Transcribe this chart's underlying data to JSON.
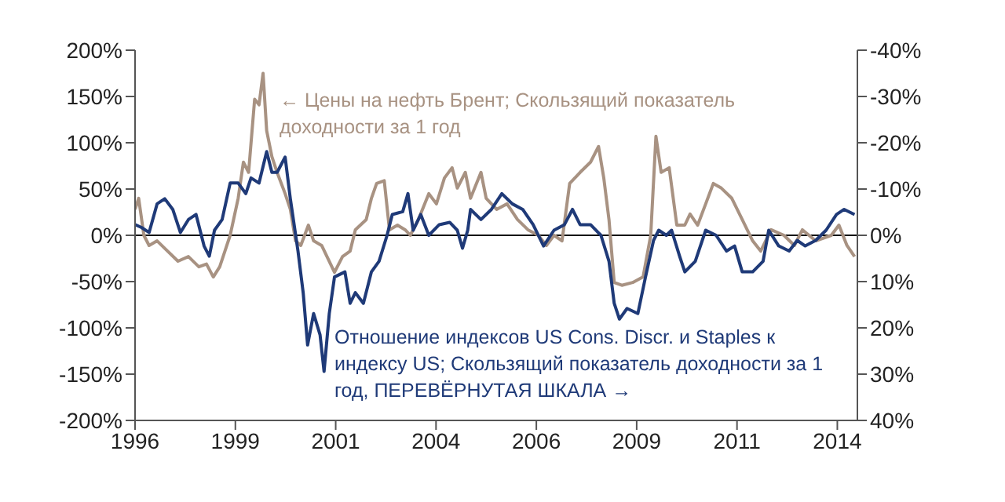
{
  "chart_data": {
    "type": "line",
    "xlim": [
      1996,
      2014
    ],
    "xticks": [
      {
        "value": 1996,
        "label": "1996"
      },
      {
        "value": 1998.5,
        "label": "1999"
      },
      {
        "value": 2001,
        "label": "2001"
      },
      {
        "value": 2003.5,
        "label": "2004"
      },
      {
        "value": 2006,
        "label": "2006"
      },
      {
        "value": 2008.5,
        "label": "2009"
      },
      {
        "value": 2011,
        "label": "2011"
      },
      {
        "value": 2013.5,
        "label": "2014"
      }
    ],
    "ylim": [
      -200,
      200
    ],
    "yticks": [
      {
        "value": -200,
        "label": "-200%"
      },
      {
        "value": -150,
        "label": "-150%"
      },
      {
        "value": -100,
        "label": "-100%"
      },
      {
        "value": -50,
        "label": "-50%"
      },
      {
        "value": 0,
        "label": "0%"
      },
      {
        "value": 50,
        "label": "50%"
      },
      {
        "value": 100,
        "label": "100%"
      },
      {
        "value": 150,
        "label": "150%"
      },
      {
        "value": 200,
        "label": "200%"
      }
    ],
    "y2lim": [
      40,
      -40
    ],
    "y2ticks": [
      {
        "value": -40,
        "label": "-40%"
      },
      {
        "value": -30,
        "label": "-30%"
      },
      {
        "value": -20,
        "label": "-20%"
      },
      {
        "value": -10,
        "label": "-10%"
      },
      {
        "value": 0,
        "label": "0%"
      },
      {
        "value": 10,
        "label": "10%"
      },
      {
        "value": 20,
        "label": "20%"
      },
      {
        "value": 30,
        "label": "30%"
      },
      {
        "value": 40,
        "label": "40%"
      }
    ],
    "ref_lines": [
      {
        "axis": "y",
        "value": 0,
        "color": "#000000"
      }
    ],
    "grid": false,
    "legend": false,
    "marker": "none",
    "line_style": "solid",
    "series": [
      {
        "name": "← Цены на нефть Брент; Скользящий показатель доходности за 1 год",
        "color": "#a89282",
        "x": [
          1996.0,
          1996.09,
          1996.22,
          1996.35,
          1996.55,
          1996.81,
          1997.07,
          1997.33,
          1997.59,
          1997.78,
          1997.95,
          1998.11,
          1998.24,
          1998.37,
          1998.57,
          1998.7,
          1998.83,
          1998.98,
          1999.09,
          1999.19,
          1999.28,
          1999.41,
          1999.54,
          1999.74,
          1999.87,
          2000.0,
          2000.13,
          2000.32,
          2000.45,
          2000.65,
          2000.97,
          2001.17,
          2001.36,
          2001.49,
          2001.76,
          2001.89,
          2002.02,
          2002.21,
          2002.34,
          2002.54,
          2002.73,
          2002.86,
          2003.06,
          2003.32,
          2003.51,
          2003.71,
          2003.9,
          2004.03,
          2004.23,
          2004.36,
          2004.62,
          2004.75,
          2005.01,
          2005.27,
          2005.53,
          2005.79,
          2006.05,
          2006.25,
          2006.44,
          2006.64,
          2006.83,
          2007.09,
          2007.35,
          2007.55,
          2007.68,
          2007.81,
          2007.94,
          2008.13,
          2008.4,
          2008.66,
          2008.85,
          2008.98,
          2009.11,
          2009.31,
          2009.5,
          2009.7,
          2009.83,
          2010.02,
          2010.22,
          2010.41,
          2010.61,
          2010.87,
          2011.13,
          2011.39,
          2011.59,
          2011.85,
          2012.17,
          2012.43,
          2012.63,
          2012.96,
          2013.35,
          2013.54,
          2013.74,
          2013.93
        ],
        "values": [
          28,
          40,
          0,
          -11,
          -6,
          -17,
          -28,
          -23,
          -34,
          -31,
          -45,
          -34,
          -17,
          0,
          40,
          79,
          68,
          147,
          141,
          175,
          113,
          85,
          68,
          45,
          28,
          -6,
          -11,
          11,
          -6,
          -11,
          -40,
          -23,
          -17,
          6,
          17,
          40,
          56,
          59,
          6,
          11,
          6,
          0,
          17,
          45,
          34,
          62,
          73,
          51,
          68,
          40,
          68,
          40,
          28,
          34,
          17,
          6,
          0,
          -11,
          0,
          -6,
          56,
          68,
          79,
          96,
          62,
          17,
          -51,
          -54,
          -51,
          -45,
          0,
          107,
          68,
          73,
          11,
          11,
          23,
          11,
          34,
          56,
          51,
          40,
          17,
          -6,
          -17,
          6,
          0,
          -11,
          6,
          -6,
          0,
          11,
          -11,
          -23
        ]
      },
      {
        "name": "Отношение индексов US Cons. Discr. и Staples к индексу US; Скользящий показатель доходности за 1 год, ПЕРЕВЁРНУТАЯ ШКАЛА →",
        "color": "#1f3a78",
        "axis": "y2",
        "x": [
          1996.0,
          1996.16,
          1996.35,
          1996.55,
          1996.74,
          1996.94,
          1997.13,
          1997.33,
          1997.52,
          1997.72,
          1997.85,
          1997.98,
          1998.17,
          1998.37,
          1998.57,
          1998.76,
          1998.89,
          1999.09,
          1999.28,
          1999.41,
          1999.54,
          1999.74,
          1999.87,
          2000.06,
          2000.19,
          2000.3,
          2000.45,
          2000.61,
          2000.71,
          2000.84,
          2000.97,
          2001.23,
          2001.36,
          2001.49,
          2001.69,
          2001.89,
          2002.08,
          2002.28,
          2002.41,
          2002.67,
          2002.8,
          2002.93,
          2003.12,
          2003.32,
          2003.58,
          2003.84,
          2004.03,
          2004.16,
          2004.29,
          2004.36,
          2004.62,
          2004.88,
          2005.14,
          2005.4,
          2005.66,
          2005.92,
          2006.18,
          2006.44,
          2006.7,
          2006.9,
          2007.09,
          2007.35,
          2007.61,
          2007.81,
          2007.94,
          2008.07,
          2008.26,
          2008.53,
          2008.72,
          2008.92,
          2009.05,
          2009.24,
          2009.37,
          2009.57,
          2009.7,
          2009.96,
          2010.22,
          2010.48,
          2010.74,
          2010.94,
          2011.13,
          2011.39,
          2011.65,
          2011.79,
          2012.04,
          2012.3,
          2012.5,
          2012.7,
          2012.96,
          2013.22,
          2013.48,
          2013.67,
          2013.93
        ],
        "values": [
          -2.3,
          -1.7,
          -0.6,
          -6.8,
          -7.9,
          -5.6,
          -0.6,
          -3.4,
          -4.5,
          2.3,
          4.5,
          -1.1,
          -3.4,
          -11.3,
          -11.3,
          -9.0,
          -12.4,
          -11.3,
          -18.1,
          -13.6,
          -13.6,
          -16.9,
          -7.9,
          3.4,
          12.4,
          23.7,
          16.9,
          21.5,
          29.4,
          16.9,
          9.0,
          7.9,
          14.7,
          12.4,
          14.7,
          7.9,
          5.6,
          0,
          -4.5,
          -5.1,
          -9.0,
          -1.1,
          -4.5,
          0,
          -2.3,
          -2.8,
          -1.1,
          2.8,
          -1.1,
          -5.6,
          -3.4,
          -5.6,
          -9.0,
          -6.8,
          -5.6,
          -2.3,
          2.3,
          -1.1,
          -2.3,
          -5.6,
          -2.3,
          -2.3,
          0,
          5.6,
          14.7,
          18.1,
          15.8,
          16.9,
          9.0,
          1.1,
          -1.1,
          0,
          -1.1,
          4.5,
          7.9,
          5.6,
          -1.1,
          0,
          3.4,
          2.3,
          7.9,
          7.9,
          5.6,
          -1.1,
          2.3,
          3.4,
          1.1,
          2.3,
          1.1,
          -1.1,
          -4.5,
          -5.6,
          -4.5
        ]
      }
    ]
  }
}
